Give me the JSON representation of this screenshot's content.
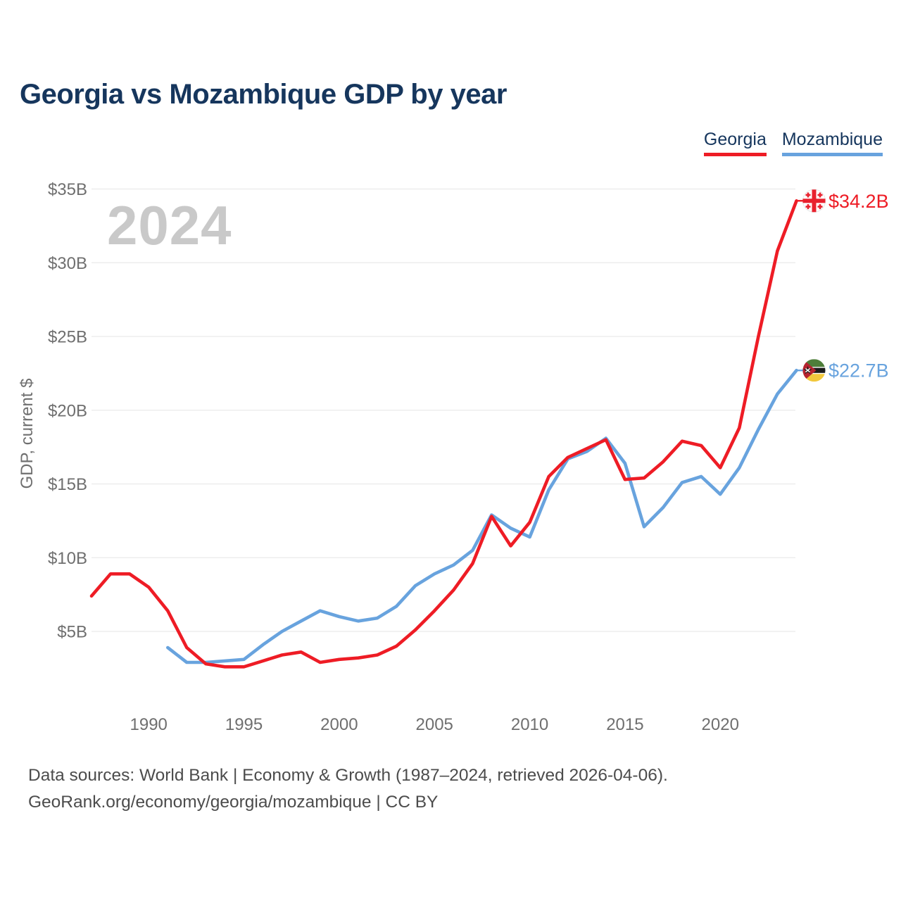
{
  "title": "Georgia vs Mozambique GDP by year",
  "watermark": "2024",
  "legend_items": [
    {
      "label": "Georgia",
      "color": "#EE1C25"
    },
    {
      "label": "Mozambique",
      "color": "#68A3DE"
    }
  ],
  "end_labels": [
    {
      "series": "Georgia",
      "text": "$34.2B",
      "color": "#EE1C25"
    },
    {
      "series": "Mozambique",
      "text": "$22.7B",
      "color": "#68A3DE"
    }
  ],
  "footer_line1": "Data sources: World Bank | Economy & Growth (1987–2024, retrieved 2026-04-06).",
  "footer_line2": "GeoRank.org/economy/georgia/mozambique | CC BY",
  "colors": {
    "grid": "#EDEDED",
    "tick_text": "#6F6F6F",
    "title_text": "#16365D",
    "footer_text": "#4C4C4C",
    "watermark": "#C9C9C9",
    "georgia": "#EE1C25",
    "mozambique": "#68A3DE"
  },
  "chart_data": {
    "type": "line",
    "title": "Georgia vs Mozambique GDP by year",
    "xlabel": "",
    "ylabel": "GDP, current $",
    "units": "billions of current US$",
    "grid": true,
    "legend_position": "top-right",
    "ylim": [
      0,
      36.5
    ],
    "y_ticks": [
      5,
      10,
      15,
      20,
      25,
      30,
      35
    ],
    "y_tick_prefix": "$",
    "y_tick_suffix": "B",
    "x_ticks": [
      1990,
      1995,
      2000,
      2005,
      2010,
      2015,
      2020
    ],
    "x": [
      1987,
      1988,
      1989,
      1990,
      1991,
      1992,
      1993,
      1994,
      1995,
      1996,
      1997,
      1998,
      1999,
      2000,
      2001,
      2002,
      2003,
      2004,
      2005,
      2006,
      2007,
      2008,
      2009,
      2010,
      2011,
      2012,
      2013,
      2014,
      2015,
      2016,
      2017,
      2018,
      2019,
      2020,
      2021,
      2022,
      2023,
      2024
    ],
    "series": [
      {
        "name": "Georgia",
        "color": "#EE1C25",
        "end_label": "$34.2B",
        "values": [
          7.4,
          8.9,
          8.9,
          8.0,
          6.4,
          3.9,
          2.8,
          2.6,
          2.6,
          3.0,
          3.4,
          3.6,
          2.9,
          3.1,
          3.2,
          3.4,
          4.0,
          5.1,
          6.4,
          7.8,
          9.6,
          12.8,
          10.8,
          12.4,
          15.5,
          16.8,
          17.4,
          18.0,
          15.3,
          15.4,
          16.5,
          17.9,
          17.6,
          16.1,
          18.8,
          25.0,
          30.8,
          34.2
        ]
      },
      {
        "name": "Mozambique",
        "color": "#68A3DE",
        "end_label": "$22.7B",
        "values": [
          null,
          null,
          null,
          null,
          3.9,
          2.9,
          2.9,
          3.0,
          3.1,
          4.1,
          5.0,
          5.7,
          6.4,
          6.0,
          5.7,
          5.9,
          6.7,
          8.1,
          8.9,
          9.5,
          10.5,
          12.9,
          12.0,
          11.4,
          14.6,
          16.7,
          17.2,
          18.1,
          16.4,
          12.1,
          13.4,
          15.1,
          15.5,
          14.3,
          16.1,
          18.7,
          21.1,
          22.7
        ]
      }
    ]
  }
}
